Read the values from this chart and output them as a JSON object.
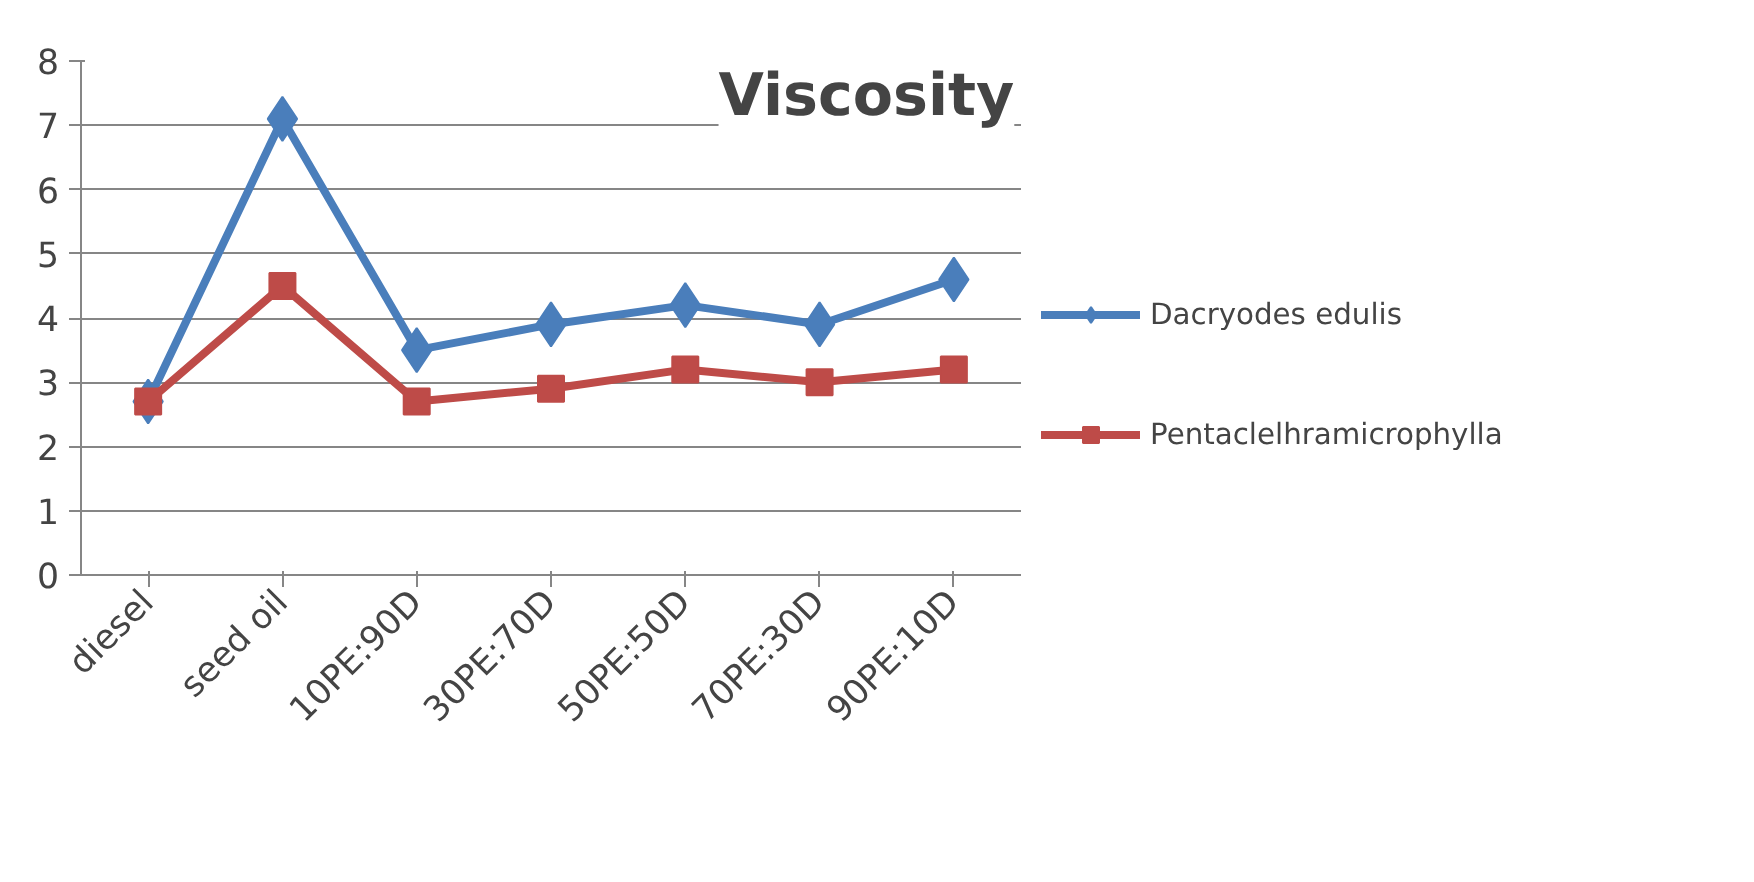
{
  "chart_data": {
    "type": "line",
    "title": "Viscosity",
    "categories": [
      "diesel",
      "seed oil",
      "10PE:90D",
      "30PE:70D",
      "50PE:50D",
      "70PE:30D",
      "90PE:10D"
    ],
    "series": [
      {
        "name": "Dacryodes edulis",
        "color": "#4a7ebb",
        "marker": "diamond",
        "values": [
          2.7,
          7.1,
          3.5,
          3.9,
          4.2,
          3.9,
          4.6
        ]
      },
      {
        "name": "Pentaclelhramicrophylla",
        "color": "#be4b48",
        "marker": "square",
        "values": [
          2.7,
          4.5,
          2.7,
          2.9,
          3.2,
          3.0,
          3.2
        ]
      }
    ],
    "ylim": [
      0,
      8
    ],
    "yticks": [
      0,
      1,
      2,
      3,
      4,
      5,
      6,
      7,
      8
    ],
    "grid": "y",
    "legend": "right",
    "line_style": "solid"
  }
}
